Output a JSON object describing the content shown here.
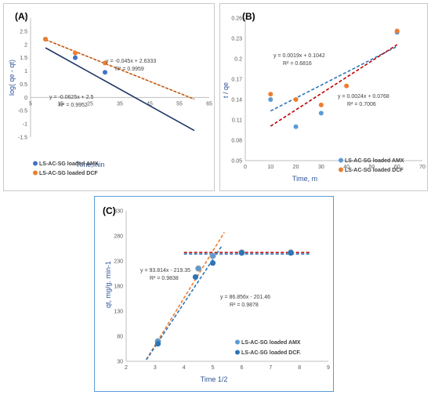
{
  "chart_data": [
    {
      "id": "A",
      "type": "scatter",
      "title": "(A)",
      "xlabel": "Time,min",
      "ylabel": "log( qe - qt)",
      "xlim": [
        5,
        65
      ],
      "ylim": [
        -1.5,
        3
      ],
      "xticks": [
        5,
        15,
        25,
        35,
        45,
        55,
        65
      ],
      "yticks": [
        -1.5,
        -1,
        -0.5,
        0,
        0.5,
        1,
        1.5,
        2,
        2.5,
        3
      ],
      "xtick_labels": [
        "5",
        "15",
        "25",
        "35",
        "45",
        "55",
        "65"
      ],
      "ytick_labels": [
        "-1.5",
        "-1",
        "-0.5",
        "0",
        "0.5",
        "1",
        "1.5",
        "2",
        "2.5",
        "3"
      ],
      "series": [
        {
          "name": "LS-AC-SG loaded AMX",
          "color": "#4472c4",
          "x": [
            10,
            20,
            30
          ],
          "y": [
            2.2,
            1.5,
            0.95
          ],
          "fit": {
            "slope": -0.0625,
            "intercept": 2.5,
            "x0": 10,
            "x1": 60,
            "color": "#1f3864"
          }
        },
        {
          "name": "LS-AC-SG loaded DCF",
          "color": "#ed7d31",
          "x": [
            10,
            20,
            30
          ],
          "y": [
            2.2,
            1.68,
            1.3
          ],
          "fit": {
            "slope": -0.045,
            "intercept": 2.6333,
            "x0": 10,
            "x1": 60,
            "color": "#c55a11"
          }
        }
      ],
      "annotations": [
        {
          "line1": "y = -0.045x + 2.6333",
          "line2": "R² = 0.9959"
        },
        {
          "line1": "y = -0.0625x + 2.5",
          "line2": "R² = 0.9952"
        }
      ],
      "grid": false,
      "legend_position": "bottom-left"
    },
    {
      "id": "B",
      "type": "scatter",
      "title": "(B)",
      "xlabel": "Time, m",
      "ylabel": "t / qe",
      "xlim": [
        0,
        70
      ],
      "ylim": [
        0.05,
        0.26
      ],
      "xticks": [
        0,
        10,
        20,
        30,
        40,
        50,
        60,
        70
      ],
      "yticks": [
        0.05,
        0.08,
        0.11,
        0.14,
        0.17,
        0.2,
        0.23,
        0.26
      ],
      "xtick_labels": [
        "0",
        "10",
        "20",
        "30",
        "40",
        "50",
        "60",
        "70"
      ],
      "ytick_labels": [
        "0.05",
        "0.08",
        "0.11",
        "0.14",
        "0.17",
        "0.2",
        "0.23",
        "0.26"
      ],
      "series": [
        {
          "name": "LS-AC-SG loaded AMX",
          "color": "#5b9bd5",
          "x": [
            10,
            20,
            30,
            60
          ],
          "y": [
            0.14,
            0.1,
            0.12,
            0.239
          ],
          "fit": {
            "slope": 0.0019,
            "intercept": 0.1042,
            "x0": 10,
            "x1": 60,
            "color": "#2e75b6"
          }
        },
        {
          "name": "LS-AC-SG loaded DCF",
          "color": "#ed7d31",
          "x": [
            10,
            20,
            30,
            40,
            60
          ],
          "y": [
            0.148,
            0.14,
            0.132,
            0.16,
            0.241
          ],
          "fit": {
            "slope": 0.0024,
            "intercept": 0.0768,
            "x0": 10,
            "x1": 60,
            "color": "#c00000"
          }
        }
      ],
      "annotations": [
        {
          "line1": "y = 0.0019x + 0.1042",
          "line2": "R² = 0.6816"
        },
        {
          "line1": "y = 0.0024x + 0.0768",
          "line2": "R² = 0.7006"
        }
      ],
      "grid": false,
      "legend_position": "bottom-right"
    },
    {
      "id": "C",
      "type": "scatter",
      "title": "(C)",
      "xlabel": "Time 1/2",
      "ylabel": "qt, mg/g. min-1",
      "xlim": [
        2,
        9
      ],
      "ylim": [
        30,
        330
      ],
      "xticks": [
        2,
        3,
        4,
        5,
        6,
        7,
        8,
        9
      ],
      "yticks": [
        30,
        80,
        130,
        180,
        230,
        280,
        330
      ],
      "xtick_labels": [
        "2",
        "3",
        "4",
        "5",
        "6",
        "7",
        "8",
        "9"
      ],
      "ytick_labels": [
        "30",
        "80",
        "130",
        "180",
        "230",
        "280",
        "330"
      ],
      "series": [
        {
          "name": "LS-AC-SG loaded AMX",
          "color": "#5b9bd5",
          "x": [
            3.1,
            4.5,
            5.0,
            6.0,
            7.7
          ],
          "y": [
            70,
            215,
            240,
            247,
            247
          ],
          "fit": {
            "slope": 93.814,
            "intercept": -219.35,
            "x0": 2.7,
            "x1": 5.4,
            "color": "#ed7d31"
          },
          "plateau": {
            "y": 247,
            "x0": 4.0,
            "x1": 8.4,
            "color": "#c00000"
          }
        },
        {
          "name": "LS-AC-SG loaded DCF.",
          "color": "#2e75b6",
          "x": [
            3.1,
            4.4,
            5.0,
            6.0,
            7.7
          ],
          "y": [
            65,
            198,
            226,
            246,
            246
          ],
          "fit": {
            "slope": 86.856,
            "intercept": -201.46,
            "x0": 2.7,
            "x1": 5.3,
            "color": "#2e75b6"
          },
          "plateau": {
            "y": 244,
            "x0": 4.0,
            "x1": 8.4,
            "color": "#2e75b6"
          }
        }
      ],
      "annotations": [
        {
          "line1": "y = 93.814x - 219.35",
          "line2": "R² = 0.9838"
        },
        {
          "line1": "y = 86.856x - 201.46",
          "line2": "R² = 0.9878"
        }
      ],
      "grid": false,
      "legend_position": "bottom-right"
    }
  ]
}
